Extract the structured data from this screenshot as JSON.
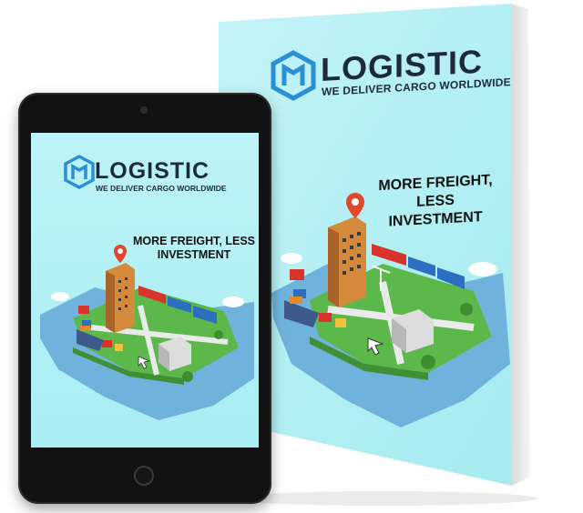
{
  "brand": {
    "name": "LOGISTIC",
    "tagline": "WE DELIVER CARGO WORLDWIDE"
  },
  "cover": {
    "headline_line1": "MORE FREIGHT, LESS",
    "headline_line2": "INVESTMENT"
  },
  "colors": {
    "cover_background": "#b0eff3",
    "logo_blue": "#2b8fd6",
    "text_dark": "#1d2a3a",
    "island_green": "#5cb84a",
    "water": "#6fb3dc"
  },
  "icons": [
    "logo-hexagon-icon",
    "map-pin-icon",
    "cursor-arrow-icon"
  ]
}
